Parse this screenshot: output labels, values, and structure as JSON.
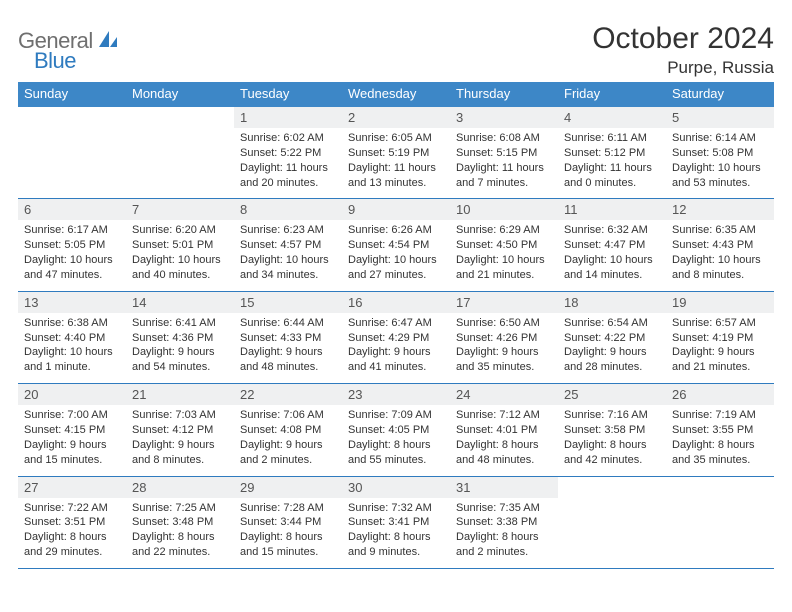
{
  "brand": {
    "part1": "General",
    "part2": "Blue"
  },
  "title": "October 2024",
  "location": "Purpe, Russia",
  "colors": {
    "header_bg": "#3d87c7",
    "header_text": "#ffffff",
    "daynum_bg": "#eff0f1",
    "border": "#3d87c7",
    "body_text": "#333333",
    "logo_gray": "#6f6f6f",
    "logo_blue": "#2f7bbf"
  },
  "fonts": {
    "title_pt": 30,
    "location_pt": 17,
    "dayhead_pt": 13,
    "daynum_pt": 13,
    "cell_pt": 11
  },
  "day_headers": [
    "Sunday",
    "Monday",
    "Tuesday",
    "Wednesday",
    "Thursday",
    "Friday",
    "Saturday"
  ],
  "weeks": [
    [
      null,
      null,
      {
        "n": "1",
        "sunrise": "Sunrise: 6:02 AM",
        "sunset": "Sunset: 5:22 PM",
        "day1": "Daylight: 11 hours",
        "day2": "and 20 minutes."
      },
      {
        "n": "2",
        "sunrise": "Sunrise: 6:05 AM",
        "sunset": "Sunset: 5:19 PM",
        "day1": "Daylight: 11 hours",
        "day2": "and 13 minutes."
      },
      {
        "n": "3",
        "sunrise": "Sunrise: 6:08 AM",
        "sunset": "Sunset: 5:15 PM",
        "day1": "Daylight: 11 hours",
        "day2": "and 7 minutes."
      },
      {
        "n": "4",
        "sunrise": "Sunrise: 6:11 AM",
        "sunset": "Sunset: 5:12 PM",
        "day1": "Daylight: 11 hours",
        "day2": "and 0 minutes."
      },
      {
        "n": "5",
        "sunrise": "Sunrise: 6:14 AM",
        "sunset": "Sunset: 5:08 PM",
        "day1": "Daylight: 10 hours",
        "day2": "and 53 minutes."
      }
    ],
    [
      {
        "n": "6",
        "sunrise": "Sunrise: 6:17 AM",
        "sunset": "Sunset: 5:05 PM",
        "day1": "Daylight: 10 hours",
        "day2": "and 47 minutes."
      },
      {
        "n": "7",
        "sunrise": "Sunrise: 6:20 AM",
        "sunset": "Sunset: 5:01 PM",
        "day1": "Daylight: 10 hours",
        "day2": "and 40 minutes."
      },
      {
        "n": "8",
        "sunrise": "Sunrise: 6:23 AM",
        "sunset": "Sunset: 4:57 PM",
        "day1": "Daylight: 10 hours",
        "day2": "and 34 minutes."
      },
      {
        "n": "9",
        "sunrise": "Sunrise: 6:26 AM",
        "sunset": "Sunset: 4:54 PM",
        "day1": "Daylight: 10 hours",
        "day2": "and 27 minutes."
      },
      {
        "n": "10",
        "sunrise": "Sunrise: 6:29 AM",
        "sunset": "Sunset: 4:50 PM",
        "day1": "Daylight: 10 hours",
        "day2": "and 21 minutes."
      },
      {
        "n": "11",
        "sunrise": "Sunrise: 6:32 AM",
        "sunset": "Sunset: 4:47 PM",
        "day1": "Daylight: 10 hours",
        "day2": "and 14 minutes."
      },
      {
        "n": "12",
        "sunrise": "Sunrise: 6:35 AM",
        "sunset": "Sunset: 4:43 PM",
        "day1": "Daylight: 10 hours",
        "day2": "and 8 minutes."
      }
    ],
    [
      {
        "n": "13",
        "sunrise": "Sunrise: 6:38 AM",
        "sunset": "Sunset: 4:40 PM",
        "day1": "Daylight: 10 hours",
        "day2": "and 1 minute."
      },
      {
        "n": "14",
        "sunrise": "Sunrise: 6:41 AM",
        "sunset": "Sunset: 4:36 PM",
        "day1": "Daylight: 9 hours",
        "day2": "and 54 minutes."
      },
      {
        "n": "15",
        "sunrise": "Sunrise: 6:44 AM",
        "sunset": "Sunset: 4:33 PM",
        "day1": "Daylight: 9 hours",
        "day2": "and 48 minutes."
      },
      {
        "n": "16",
        "sunrise": "Sunrise: 6:47 AM",
        "sunset": "Sunset: 4:29 PM",
        "day1": "Daylight: 9 hours",
        "day2": "and 41 minutes."
      },
      {
        "n": "17",
        "sunrise": "Sunrise: 6:50 AM",
        "sunset": "Sunset: 4:26 PM",
        "day1": "Daylight: 9 hours",
        "day2": "and 35 minutes."
      },
      {
        "n": "18",
        "sunrise": "Sunrise: 6:54 AM",
        "sunset": "Sunset: 4:22 PM",
        "day1": "Daylight: 9 hours",
        "day2": "and 28 minutes."
      },
      {
        "n": "19",
        "sunrise": "Sunrise: 6:57 AM",
        "sunset": "Sunset: 4:19 PM",
        "day1": "Daylight: 9 hours",
        "day2": "and 21 minutes."
      }
    ],
    [
      {
        "n": "20",
        "sunrise": "Sunrise: 7:00 AM",
        "sunset": "Sunset: 4:15 PM",
        "day1": "Daylight: 9 hours",
        "day2": "and 15 minutes."
      },
      {
        "n": "21",
        "sunrise": "Sunrise: 7:03 AM",
        "sunset": "Sunset: 4:12 PM",
        "day1": "Daylight: 9 hours",
        "day2": "and 8 minutes."
      },
      {
        "n": "22",
        "sunrise": "Sunrise: 7:06 AM",
        "sunset": "Sunset: 4:08 PM",
        "day1": "Daylight: 9 hours",
        "day2": "and 2 minutes."
      },
      {
        "n": "23",
        "sunrise": "Sunrise: 7:09 AM",
        "sunset": "Sunset: 4:05 PM",
        "day1": "Daylight: 8 hours",
        "day2": "and 55 minutes."
      },
      {
        "n": "24",
        "sunrise": "Sunrise: 7:12 AM",
        "sunset": "Sunset: 4:01 PM",
        "day1": "Daylight: 8 hours",
        "day2": "and 48 minutes."
      },
      {
        "n": "25",
        "sunrise": "Sunrise: 7:16 AM",
        "sunset": "Sunset: 3:58 PM",
        "day1": "Daylight: 8 hours",
        "day2": "and 42 minutes."
      },
      {
        "n": "26",
        "sunrise": "Sunrise: 7:19 AM",
        "sunset": "Sunset: 3:55 PM",
        "day1": "Daylight: 8 hours",
        "day2": "and 35 minutes."
      }
    ],
    [
      {
        "n": "27",
        "sunrise": "Sunrise: 7:22 AM",
        "sunset": "Sunset: 3:51 PM",
        "day1": "Daylight: 8 hours",
        "day2": "and 29 minutes."
      },
      {
        "n": "28",
        "sunrise": "Sunrise: 7:25 AM",
        "sunset": "Sunset: 3:48 PM",
        "day1": "Daylight: 8 hours",
        "day2": "and 22 minutes."
      },
      {
        "n": "29",
        "sunrise": "Sunrise: 7:28 AM",
        "sunset": "Sunset: 3:44 PM",
        "day1": "Daylight: 8 hours",
        "day2": "and 15 minutes."
      },
      {
        "n": "30",
        "sunrise": "Sunrise: 7:32 AM",
        "sunset": "Sunset: 3:41 PM",
        "day1": "Daylight: 8 hours",
        "day2": "and 9 minutes."
      },
      {
        "n": "31",
        "sunrise": "Sunrise: 7:35 AM",
        "sunset": "Sunset: 3:38 PM",
        "day1": "Daylight: 8 hours",
        "day2": "and 2 minutes."
      },
      null,
      null
    ]
  ]
}
